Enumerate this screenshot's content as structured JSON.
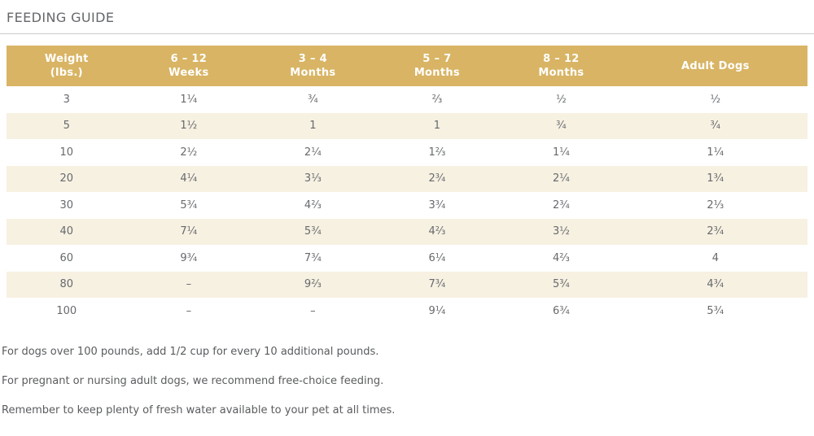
{
  "page": {
    "title": "FEEDING GUIDE"
  },
  "table": {
    "columns": [
      {
        "line1": "Weight",
        "line2": "(lbs.)"
      },
      {
        "line1": "6 – 12",
        "line2": "Weeks"
      },
      {
        "line1": "3 – 4",
        "line2": "Months"
      },
      {
        "line1": "5 – 7",
        "line2": "Months"
      },
      {
        "line1": "8 – 12",
        "line2": "Months"
      },
      {
        "line1": "Adult Dogs",
        "line2": ""
      }
    ],
    "rows": [
      {
        "weight": "3",
        "values": [
          "1¼",
          "¾",
          "⅔",
          "½",
          "½"
        ]
      },
      {
        "weight": "5",
        "values": [
          "1½",
          "1",
          "1",
          "¾",
          "¾"
        ]
      },
      {
        "weight": "10",
        "values": [
          "2½",
          "2¼",
          "1⅔",
          "1¼",
          "1¼"
        ]
      },
      {
        "weight": "20",
        "values": [
          "4¼",
          "3⅓",
          "2¾",
          "2¼",
          "1¾"
        ]
      },
      {
        "weight": "30",
        "values": [
          "5¾",
          "4⅔",
          "3¾",
          "2¾",
          "2⅓"
        ]
      },
      {
        "weight": "40",
        "values": [
          "7¼",
          "5¾",
          "4⅔",
          "3½",
          "2¾"
        ]
      },
      {
        "weight": "60",
        "values": [
          "9¾",
          "7¾",
          "6¼",
          "4⅔",
          "4"
        ]
      },
      {
        "weight": "80",
        "values": [
          "–",
          "9⅔",
          "7¾",
          "5¾",
          "4¾"
        ]
      },
      {
        "weight": "100",
        "values": [
          "–",
          "–",
          "9¼",
          "6¾",
          "5¾"
        ]
      }
    ]
  },
  "notes": [
    "For dogs over 100 pounds, add 1/2 cup for every 10 additional pounds.",
    "For pregnant or nursing adult dogs, we recommend free-choice feeding.",
    "Remember to keep plenty of fresh water available to your pet at all times."
  ],
  "colors": {
    "header_bg": "#d8b464",
    "row_alt_bg": "#f7f1e2",
    "header_text": "#ffffff",
    "body_text": "#66696d",
    "title_text": "#64676b",
    "rule": "#cccccc"
  }
}
